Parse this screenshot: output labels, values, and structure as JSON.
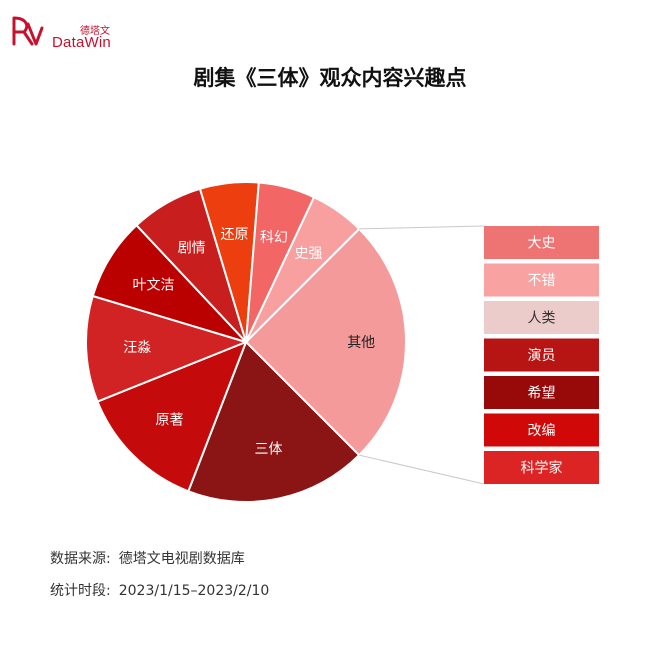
{
  "brand": {
    "name_cn": "德塔文",
    "name_en": "DataWin"
  },
  "chart_data": {
    "type": "pie",
    "title": "剧集《三体》观众内容兴趣点",
    "slices": [
      {
        "label": "其他",
        "value": 24.5,
        "color": "#f59a9a"
      },
      {
        "label": "三体",
        "value": 18.0,
        "color": "#8b1414"
      },
      {
        "label": "原著",
        "value": 12.8,
        "color": "#c40a0a"
      },
      {
        "label": "汪淼",
        "value": 10.5,
        "color": "#d12323"
      },
      {
        "label": "叶文洁",
        "value": 8.2,
        "color": "#bb0000"
      },
      {
        "label": "剧情",
        "value": 7.2,
        "color": "#c81e1e"
      },
      {
        "label": "还原",
        "value": 5.8,
        "color": "#ec3e0f"
      },
      {
        "label": "科幻",
        "value": 5.6,
        "color": "#f26666"
      },
      {
        "label": "史强",
        "value": 5.4,
        "color": "#f8a0a0"
      }
    ],
    "breakdown": {
      "of": "其他",
      "items": [
        {
          "label": "大史",
          "color": "#ee7474"
        },
        {
          "label": "不错",
          "color": "#f8a2a2"
        },
        {
          "label": "人类",
          "color": "#eccbcb"
        },
        {
          "label": "演员",
          "color": "#b71414"
        },
        {
          "label": "希望",
          "color": "#980a0a"
        },
        {
          "label": "改编",
          "color": "#d00808"
        },
        {
          "label": "科学家",
          "color": "#dd2424"
        }
      ]
    }
  },
  "source": {
    "label": "数据来源:",
    "value": "德塔文电视剧数据库"
  },
  "period": {
    "label": "统计时段:",
    "value": "2023/1/15–2023/2/10"
  }
}
